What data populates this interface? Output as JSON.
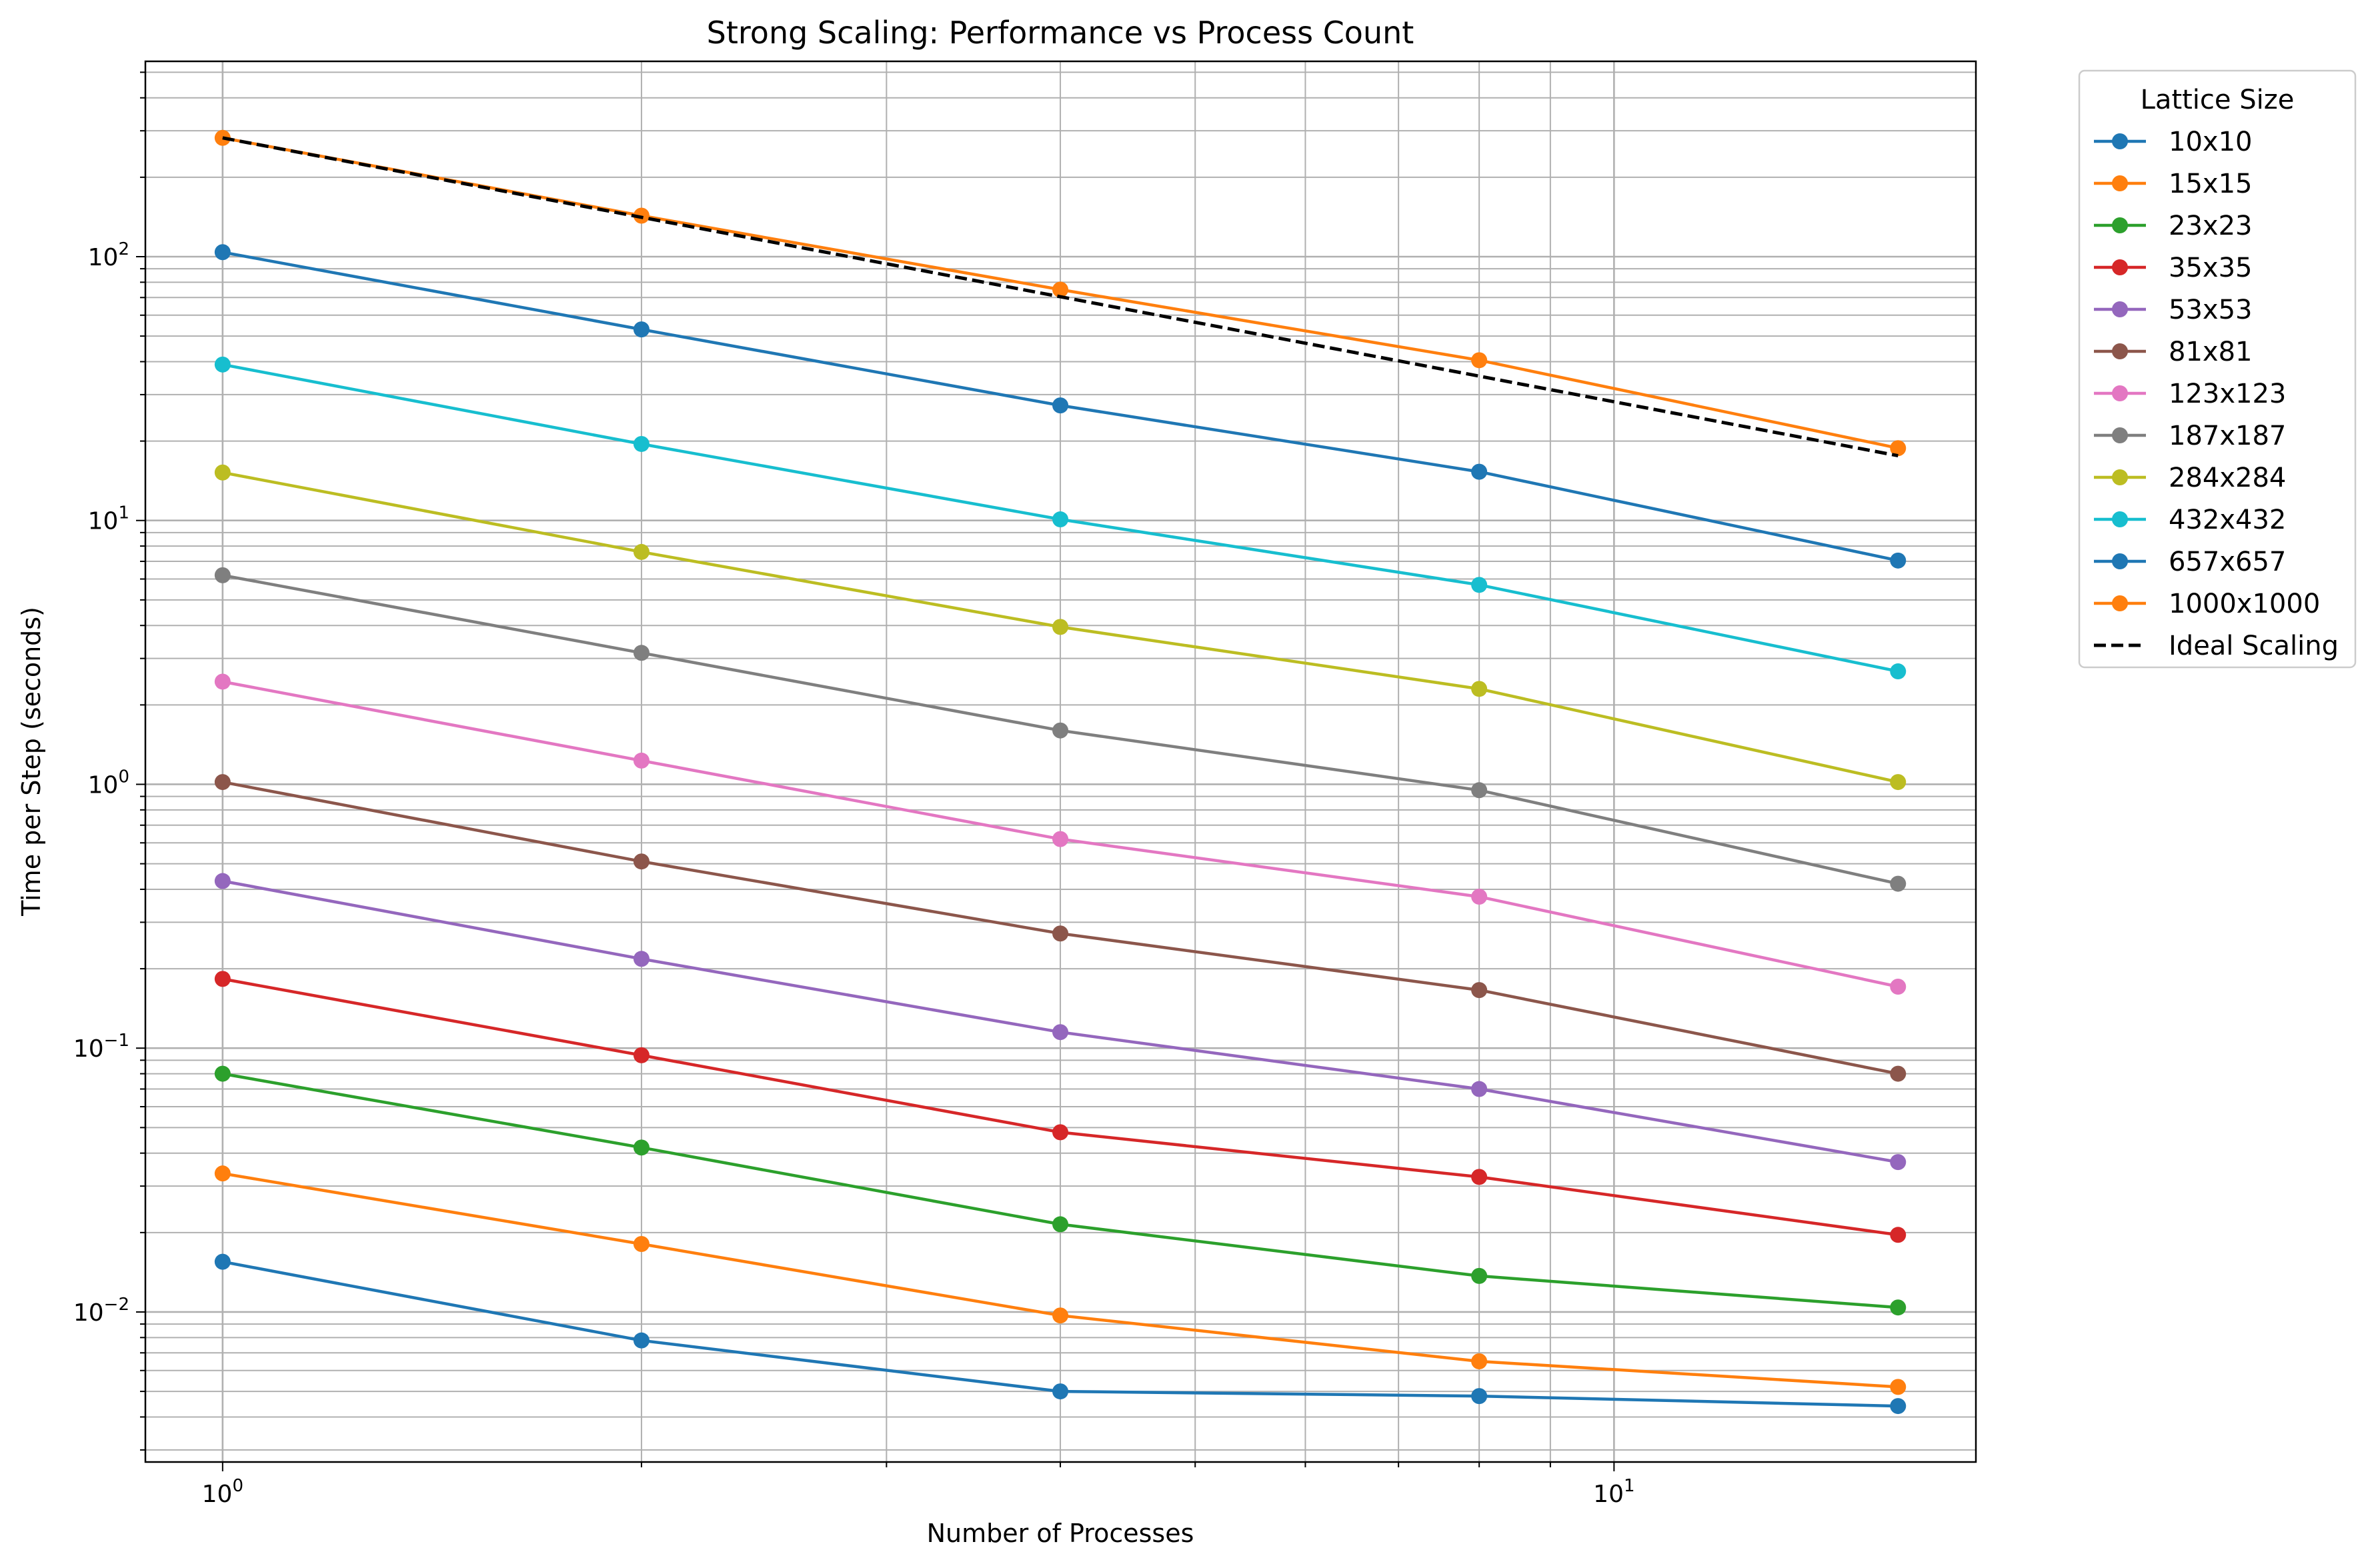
{
  "chart_data": {
    "type": "line",
    "title": "Strong Scaling: Performance vs Process Count",
    "xlabel": "Number of Processes",
    "ylabel": "Time per Step (seconds)",
    "xscale": "log",
    "yscale": "log",
    "xlim": [
      0.88,
      18.2
    ],
    "ylim": [
      0.0027,
      550
    ],
    "grid": true,
    "grid_minor": true,
    "legend_title": "Lattice Size",
    "legend_position": "outside-top-right",
    "x": [
      1,
      2,
      4,
      8,
      16
    ],
    "x_tick_labels": [
      {
        "value": 1,
        "base": "10",
        "exp": "0"
      },
      {
        "value": 10,
        "base": "10",
        "exp": "1"
      }
    ],
    "y_tick_labels": [
      {
        "value": 0.01,
        "base": "10",
        "exp": "−2"
      },
      {
        "value": 0.1,
        "base": "10",
        "exp": "−1"
      },
      {
        "value": 1,
        "base": "10",
        "exp": "0"
      },
      {
        "value": 10,
        "base": "10",
        "exp": "1"
      },
      {
        "value": 100,
        "base": "10",
        "exp": "2"
      }
    ],
    "series": [
      {
        "name": "10x10",
        "color": "#1f77b4",
        "values": [
          0.0155,
          0.0078,
          0.005,
          0.0048,
          0.0044
        ]
      },
      {
        "name": "15x15",
        "color": "#ff7f0e",
        "values": [
          0.0335,
          0.0181,
          0.0097,
          0.0065,
          0.0052
        ]
      },
      {
        "name": "23x23",
        "color": "#2ca02c",
        "values": [
          0.08,
          0.042,
          0.0215,
          0.0137,
          0.0104
        ]
      },
      {
        "name": "35x35",
        "color": "#d62728",
        "values": [
          0.183,
          0.094,
          0.048,
          0.0325,
          0.0196
        ]
      },
      {
        "name": "53x53",
        "color": "#9467bd",
        "values": [
          0.43,
          0.218,
          0.115,
          0.07,
          0.037
        ]
      },
      {
        "name": "81x81",
        "color": "#8c564b",
        "values": [
          1.02,
          0.51,
          0.272,
          0.166,
          0.08
        ]
      },
      {
        "name": "123x123",
        "color": "#e377c2",
        "values": [
          2.45,
          1.23,
          0.62,
          0.375,
          0.171
        ]
      },
      {
        "name": "187x187",
        "color": "#7f7f7f",
        "values": [
          6.2,
          3.15,
          1.6,
          0.95,
          0.42
        ]
      },
      {
        "name": "284x284",
        "color": "#bcbd22",
        "values": [
          15.2,
          7.6,
          3.95,
          2.3,
          1.02
        ]
      },
      {
        "name": "432x432",
        "color": "#17becf",
        "values": [
          39,
          19.5,
          10.1,
          5.7,
          2.68
        ]
      },
      {
        "name": "657x657",
        "color": "#1f77b4",
        "values": [
          104,
          53,
          27.3,
          15.3,
          7.05
        ]
      },
      {
        "name": "1000x1000",
        "color": "#ff7f0e",
        "values": [
          282,
          143,
          75,
          40.5,
          18.8
        ]
      }
    ],
    "ideal": {
      "name": "Ideal Scaling",
      "color": "#000000",
      "values": [
        282,
        141,
        70.5,
        35.25,
        17.6
      ]
    }
  }
}
